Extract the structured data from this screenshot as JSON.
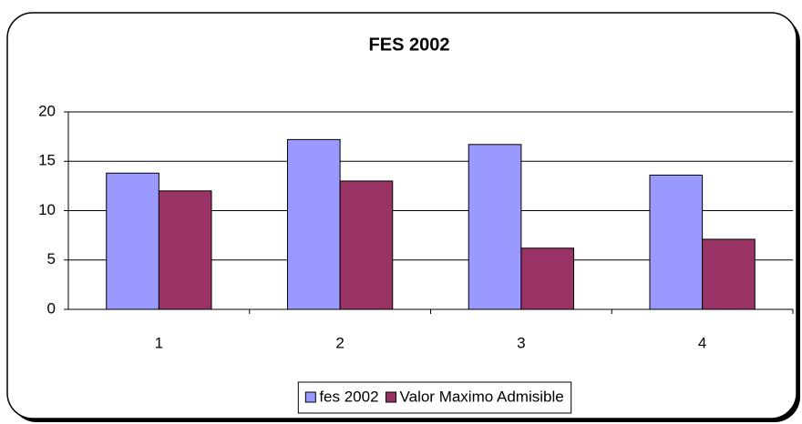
{
  "chart_data": {
    "type": "bar",
    "title": "FES 2002",
    "categories": [
      "1",
      "2",
      "3",
      "4"
    ],
    "series": [
      {
        "name": "fes 2002",
        "color": "#9999ff",
        "values": [
          13.8,
          17.2,
          16.7,
          13.6
        ]
      },
      {
        "name": "Valor Maximo Admisible",
        "color": "#993366",
        "values": [
          12,
          13,
          6.2,
          7.1
        ]
      }
    ],
    "ylim": [
      0,
      20
    ],
    "yticks": [
      0,
      5,
      10,
      15,
      20
    ],
    "grid": true,
    "legend": "bottom"
  }
}
